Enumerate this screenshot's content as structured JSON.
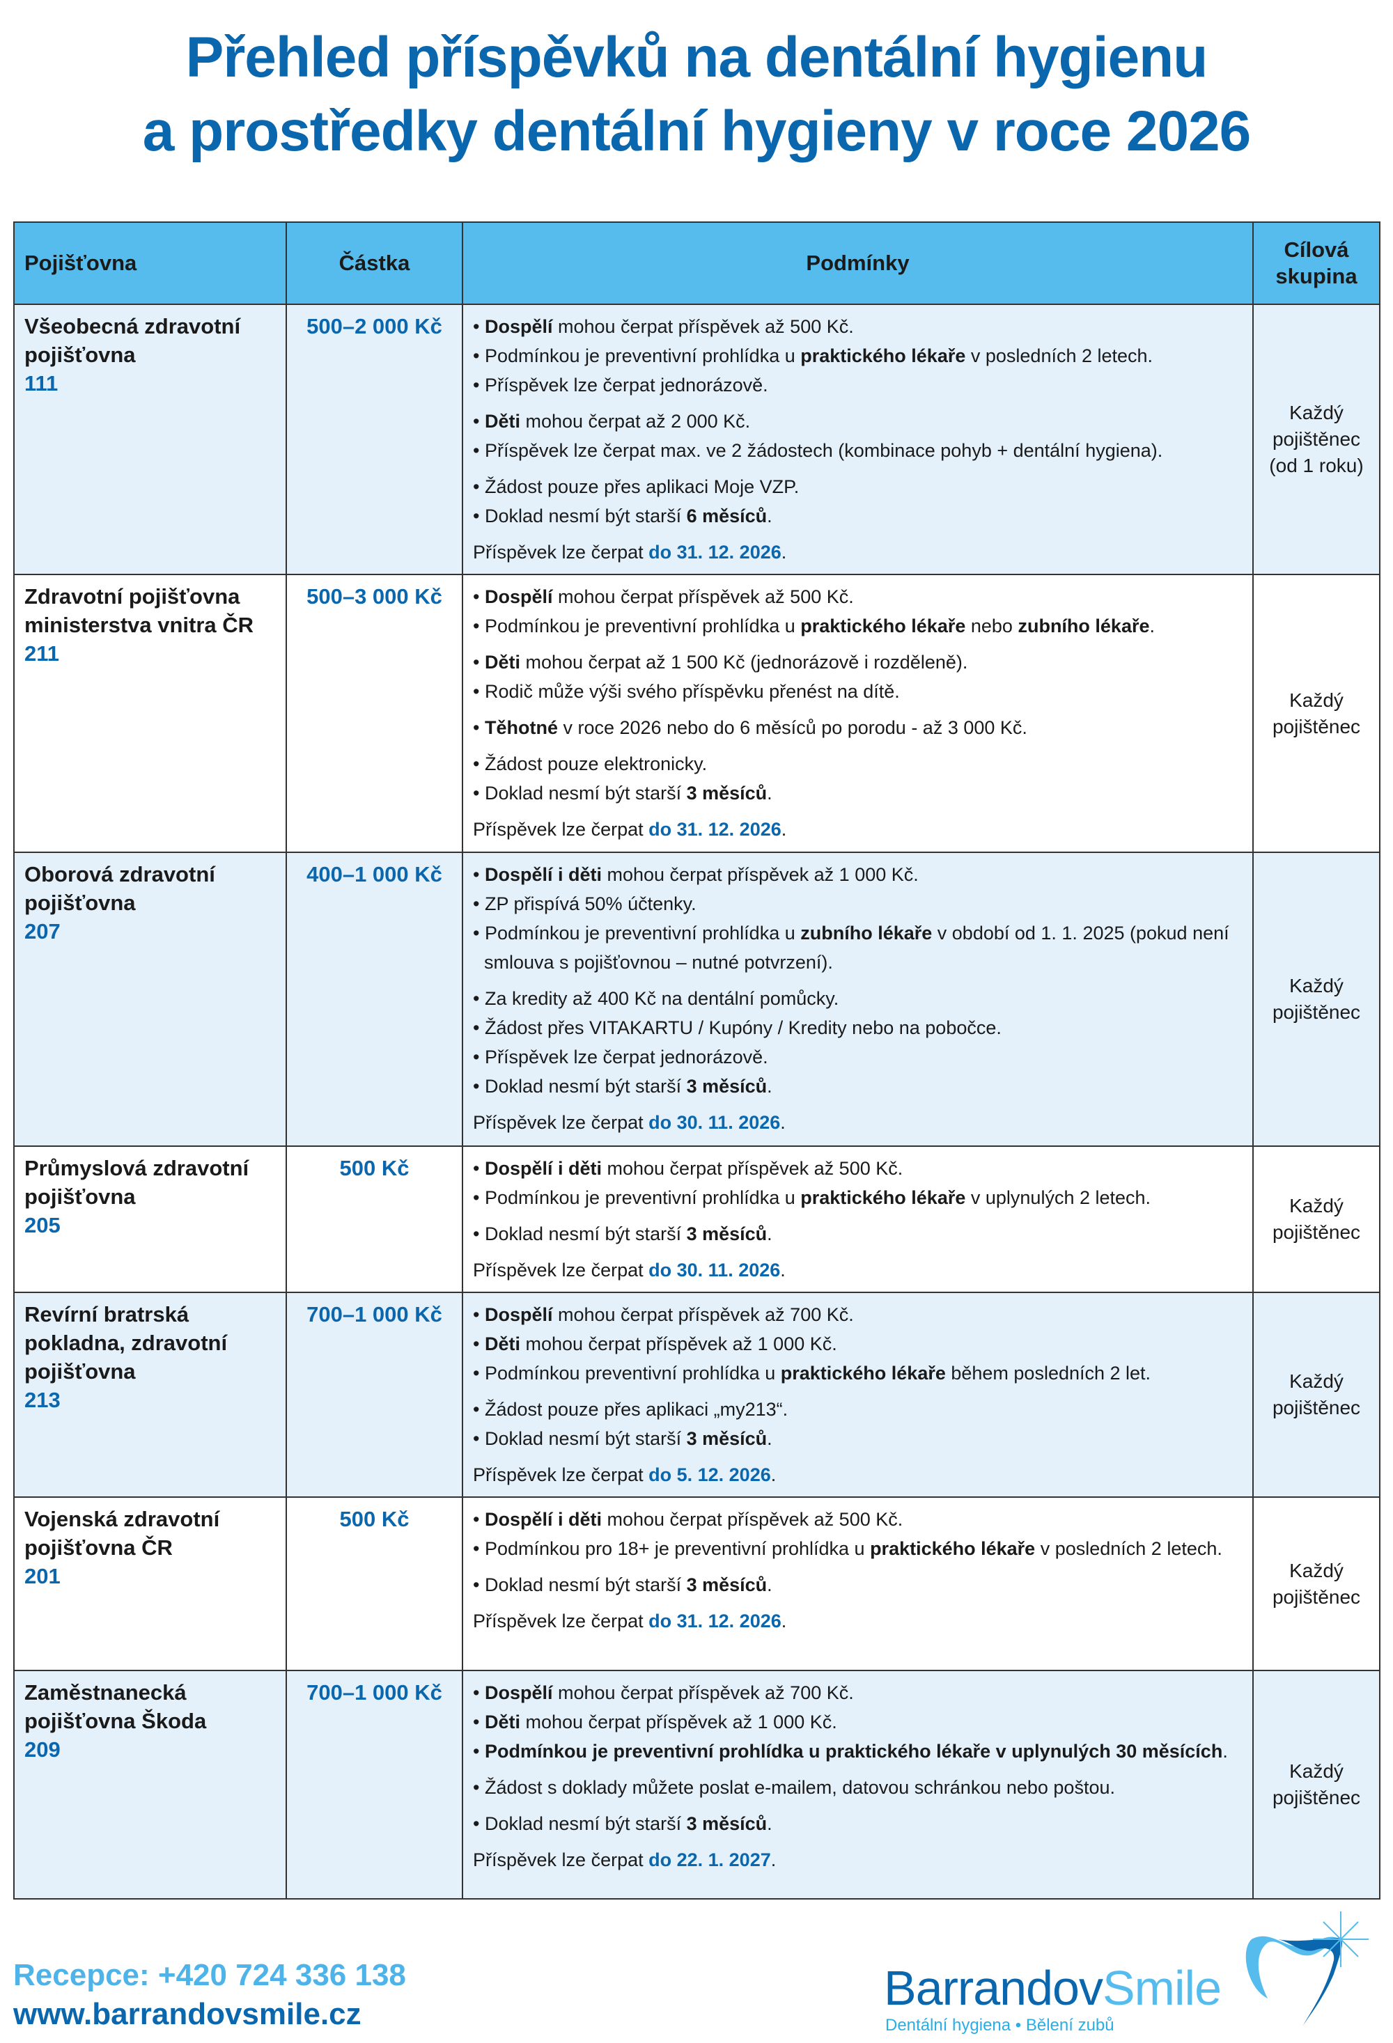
{
  "title": {
    "line1": "Přehled příspěvků na dentální hygienu",
    "line2": "a prostředky dentální hygieny v roce 2026"
  },
  "table": {
    "headers": [
      "Pojišťovna",
      "Částka",
      "Podmínky",
      "Cílová skupina"
    ],
    "rows": [
      {
        "name": "Všeobecná zdravotní pojišťovna",
        "code": "111",
        "amount": "500–2 000 Kč",
        "target": "Každý pojištěnec (od 1 roku)",
        "groups": [
          [
            [
              {
                "t": "Dospělí",
                "s": "b"
              },
              {
                "t": " mohou čerpat příspěvek až 500 Kč."
              }
            ],
            [
              {
                "t": "Podmínkou je preventivní prohlídka u "
              },
              {
                "t": "praktického lékaře",
                "s": "b"
              },
              {
                "t": " v posledních 2 letech."
              }
            ],
            [
              {
                "t": "Příspěvek lze čerpat jednorázově."
              }
            ]
          ],
          [
            [
              {
                "t": "Děti",
                "s": "b"
              },
              {
                "t": " mohou čerpat až 2 000 Kč."
              }
            ],
            [
              {
                "t": "Příspěvek lze čerpat max. ve 2 žádostech (kombinace pohyb + dentální hygiena)."
              }
            ]
          ],
          [
            [
              {
                "t": "Žádost pouze přes aplikaci Moje VZP."
              }
            ],
            [
              {
                "t": "Doklad nesmí být starší "
              },
              {
                "t": "6 měsíců",
                "s": "b"
              },
              {
                "t": "."
              }
            ]
          ]
        ],
        "deadline": [
          {
            "t": "Příspěvek lze čerpat "
          },
          {
            "t": "do 31. 12. 2026",
            "s": "blue"
          },
          {
            "t": "."
          }
        ]
      },
      {
        "name": "Zdravotní pojišťovna ministerstva vnitra ČR",
        "code": "211",
        "amount": "500–3 000 Kč",
        "target": "Každý pojištěnec",
        "groups": [
          [
            [
              {
                "t": "Dospělí",
                "s": "b"
              },
              {
                "t": " mohou čerpat příspěvek až 500 Kč."
              }
            ],
            [
              {
                "t": "Podmínkou je preventivní prohlídka u "
              },
              {
                "t": "praktického lékaře",
                "s": "b"
              },
              {
                "t": " nebo "
              },
              {
                "t": "zubního lékaře",
                "s": "b"
              },
              {
                "t": "."
              }
            ]
          ],
          [
            [
              {
                "t": "Děti",
                "s": "b"
              },
              {
                "t": " mohou čerpat až 1 500 Kč (jednorázově i rozděleně)."
              }
            ],
            [
              {
                "t": "Rodič může výši svého příspěvku přenést na dítě."
              }
            ]
          ],
          [
            [
              {
                "t": "Těhotné",
                "s": "b"
              },
              {
                "t": " v roce 2026 nebo do 6 měsíců po porodu - až 3 000 Kč."
              }
            ]
          ],
          [
            [
              {
                "t": "Žádost pouze elektronicky."
              }
            ],
            [
              {
                "t": "Doklad nesmí být starší "
              },
              {
                "t": "3 měsíců",
                "s": "b"
              },
              {
                "t": "."
              }
            ]
          ]
        ],
        "deadline": [
          {
            "t": "Příspěvek lze čerpat "
          },
          {
            "t": "do 31. 12. 2026",
            "s": "blue"
          },
          {
            "t": "."
          }
        ]
      },
      {
        "name": "Oborová zdravotní pojišťovna",
        "code": "207",
        "amount": "400–1 000 Kč",
        "target": "Každý pojištěnec",
        "groups": [
          [
            [
              {
                "t": "Dospělí i děti",
                "s": "b"
              },
              {
                "t": " mohou čerpat příspěvek až 1 000 Kč."
              }
            ],
            [
              {
                "t": "ZP přispívá 50% účtenky."
              }
            ],
            [
              {
                "t": "Podmínkou je preventivní prohlídka u "
              },
              {
                "t": "zubního lékaře",
                "s": "b"
              },
              {
                "t": " v období od 1. 1. 2025 (pokud není smlouva s pojišťovnou – nutné potvrzení)."
              }
            ]
          ],
          [
            [
              {
                "t": "Za kredity až 400 Kč na dentální pomůcky."
              }
            ],
            [
              {
                "t": "Žádost přes VITAKARTU / Kupóny / Kredity nebo na pobočce."
              }
            ],
            [
              {
                "t": "Příspěvek lze čerpat jednorázově."
              }
            ],
            [
              {
                "t": "Doklad nesmí být starší "
              },
              {
                "t": "3 měsíců",
                "s": "b"
              },
              {
                "t": "."
              }
            ]
          ]
        ],
        "deadline": [
          {
            "t": "Příspěvek lze čerpat "
          },
          {
            "t": "do 30. 11. 2026",
            "s": "blue"
          },
          {
            "t": "."
          }
        ]
      },
      {
        "name": "Průmyslová zdravotní pojišťovna",
        "code": "205",
        "amount": "500 Kč",
        "target": "Každý pojištěnec",
        "groups": [
          [
            [
              {
                "t": "Dospělí i děti",
                "s": "b"
              },
              {
                "t": " mohou čerpat příspěvek až 500 Kč."
              }
            ],
            [
              {
                "t": "Podmínkou je preventivní prohlídka u "
              },
              {
                "t": "praktického lékaře",
                "s": "b"
              },
              {
                "t": " v uplynulých 2 letech."
              }
            ]
          ],
          [
            [
              {
                "t": "Doklad nesmí být starší "
              },
              {
                "t": "3 měsíců",
                "s": "b"
              },
              {
                "t": "."
              }
            ]
          ]
        ],
        "deadline": [
          {
            "t": "Příspěvek lze čerpat "
          },
          {
            "t": "do 30. 11. 2026",
            "s": "blue"
          },
          {
            "t": "."
          }
        ]
      },
      {
        "name": "Revírní bratrská pokladna, zdravotní pojišťovna",
        "code": "213",
        "amount": "700–1 000 Kč",
        "target": "Každý pojištěnec",
        "groups": [
          [
            [
              {
                "t": "Dospělí",
                "s": "b"
              },
              {
                "t": " mohou čerpat příspěvek až 700 Kč."
              }
            ],
            [
              {
                "t": "Děti",
                "s": "b"
              },
              {
                "t": " mohou čerpat příspěvek až 1 000 Kč."
              }
            ],
            [
              {
                "t": "Podmínkou preventivní prohlídka u "
              },
              {
                "t": "praktického lékaře",
                "s": "b"
              },
              {
                "t": " během posledních 2 let."
              }
            ]
          ],
          [
            [
              {
                "t": "Žádost pouze přes aplikaci „my213“."
              }
            ],
            [
              {
                "t": "Doklad nesmí být starší "
              },
              {
                "t": "3 měsíců",
                "s": "b"
              },
              {
                "t": "."
              }
            ]
          ]
        ],
        "deadline": [
          {
            "t": "Příspěvek lze čerpat "
          },
          {
            "t": "do 5. 12. 2026",
            "s": "blue"
          },
          {
            "t": "."
          }
        ]
      },
      {
        "name": "Vojenská zdravotní pojišťovna ČR",
        "code": "201",
        "amount": "500 Kč",
        "target": "Každý pojištěnec",
        "groups": [
          [
            [
              {
                "t": "Dospělí i děti",
                "s": "b"
              },
              {
                "t": " mohou čerpat příspěvek až 500 Kč."
              }
            ],
            [
              {
                "t": "Podmínkou pro 18+ je preventivní prohlídka u "
              },
              {
                "t": "praktického lékaře",
                "s": "b"
              },
              {
                "t": " v posledních 2 letech."
              }
            ]
          ],
          [
            [
              {
                "t": "Doklad nesmí být starší "
              },
              {
                "t": "3 měsíců",
                "s": "b"
              },
              {
                "t": "."
              }
            ]
          ]
        ],
        "deadline": [
          {
            "t": "Příspěvek lze čerpat "
          },
          {
            "t": "do 31. 12. 2026",
            "s": "blue"
          },
          {
            "t": "."
          }
        ]
      },
      {
        "name": "Zaměstnanecká pojišťovna Škoda",
        "code": "209",
        "amount": "700–1 000 Kč",
        "target": "Každý pojištěnec",
        "groups": [
          [
            [
              {
                "t": "Dospělí",
                "s": "b"
              },
              {
                "t": " mohou čerpat příspěvek až 700 Kč."
              }
            ],
            [
              {
                "t": "Děti",
                "s": "b"
              },
              {
                "t": " mohou čerpat příspěvek až 1 000 Kč."
              }
            ],
            [
              {
                "t": "Podmínkou je preventivní prohlídka u praktického lékaře v uplynulých 30 měsících",
                "s": "b"
              },
              {
                "t": "."
              }
            ]
          ],
          [
            [
              {
                "t": "Žádost s doklady můžete poslat e-mailem, datovou schránkou nebo poštou."
              }
            ]
          ],
          [
            [
              {
                "t": "Doklad nesmí být starší "
              },
              {
                "t": "3 měsíců",
                "s": "b"
              },
              {
                "t": "."
              }
            ]
          ]
        ],
        "deadline": [
          {
            "t": "Příspěvek lze čerpat "
          },
          {
            "t": "do 22. 1. 2027",
            "s": "blue"
          },
          {
            "t": "."
          }
        ]
      }
    ]
  },
  "footer": {
    "phone": "Recepce: +420 724 336 138",
    "web": "www.barrandovsmile.cz"
  },
  "logo": {
    "part1": "Barrandov",
    "part2": "Smile",
    "tagline": "Dentální hygiena • Bělení zubů"
  },
  "colors": {
    "header_bg": "#55bced",
    "accent": "#0a66ad",
    "row_alt": "#e4f1fb"
  }
}
